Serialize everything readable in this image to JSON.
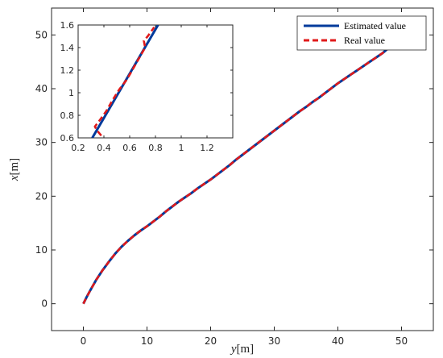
{
  "chart_data": [
    {
      "type": "line",
      "xlabel": {
        "var": "y",
        "unit": "[m]"
      },
      "ylabel": {
        "var": "x",
        "unit": "[m]"
      },
      "xlim": [
        -5,
        55
      ],
      "ylim": [
        -5,
        55
      ],
      "xticks": [
        0,
        10,
        20,
        30,
        40,
        50
      ],
      "yticks": [
        0,
        10,
        20,
        30,
        40,
        50
      ],
      "grid": false,
      "legend_position": "top-right",
      "series": [
        {
          "name": "Estimated value",
          "color": "#003a9b",
          "style": "solid",
          "x": [
            0,
            0.5,
            1,
            2,
            3,
            4,
            5,
            6,
            7,
            8,
            9,
            10,
            11,
            12,
            13,
            14,
            15,
            16,
            17,
            18,
            19,
            20,
            21,
            22,
            23,
            24,
            25,
            26,
            27,
            28,
            29,
            30,
            31,
            32,
            33,
            34,
            35,
            36,
            37,
            38,
            39,
            40,
            41,
            42,
            43,
            44,
            45,
            46,
            47,
            48
          ],
          "y": [
            0,
            1.2,
            2.3,
            4.4,
            6.2,
            7.8,
            9.3,
            10.6,
            11.7,
            12.7,
            13.6,
            14.4,
            15.3,
            16.2,
            17.2,
            18.1,
            19.0,
            19.8,
            20.6,
            21.5,
            22.3,
            23.1,
            24.0,
            24.9,
            25.8,
            26.8,
            27.7,
            28.6,
            29.5,
            30.4,
            31.3,
            32.2,
            33.1,
            34.0,
            34.9,
            35.8,
            36.6,
            37.5,
            38.3,
            39.2,
            40.1,
            41.0,
            41.8,
            42.6,
            43.4,
            44.2,
            45.0,
            45.8,
            46.6,
            47.6
          ]
        },
        {
          "name": "Real value",
          "color": "#e0191a",
          "style": "dashed",
          "x": [
            0,
            0.5,
            1,
            2,
            3,
            4,
            5,
            6,
            7,
            8,
            9,
            10,
            11,
            12,
            13,
            14,
            15,
            16,
            17,
            18,
            19,
            20,
            21,
            22,
            23,
            24,
            25,
            26,
            27,
            28,
            29,
            30,
            31,
            32,
            33,
            34,
            35,
            36,
            37,
            38,
            39,
            40,
            41,
            42,
            43,
            44,
            45,
            46,
            47,
            48
          ],
          "y": [
            0,
            1.2,
            2.3,
            4.4,
            6.2,
            7.8,
            9.3,
            10.6,
            11.7,
            12.7,
            13.6,
            14.4,
            15.3,
            16.2,
            17.2,
            18.1,
            19.0,
            19.8,
            20.6,
            21.5,
            22.3,
            23.1,
            24.0,
            24.9,
            25.8,
            26.8,
            27.7,
            28.6,
            29.5,
            30.4,
            31.3,
            32.2,
            33.1,
            34.0,
            34.9,
            35.8,
            36.6,
            37.5,
            38.3,
            39.2,
            40.1,
            41.0,
            41.8,
            42.6,
            43.4,
            44.2,
            45.0,
            45.8,
            46.6,
            47.6
          ]
        }
      ]
    },
    {
      "type": "line",
      "xlim": [
        0.2,
        1.4
      ],
      "ylim": [
        0.6,
        1.6
      ],
      "xticks": [
        0.2,
        0.4,
        0.6,
        0.8,
        1,
        1.2
      ],
      "yticks": [
        0.6,
        0.8,
        1,
        1.2,
        1.4,
        1.6
      ],
      "grid": false,
      "series": [
        {
          "name": "Estimated value",
          "color": "#003a9b",
          "style": "solid",
          "x": [
            0.31,
            0.82
          ],
          "y": [
            0.6,
            1.6
          ]
        },
        {
          "name": "Real value",
          "color": "#e0191a",
          "style": "dashed",
          "x": [
            0.38,
            0.35,
            0.33,
            0.37,
            0.42,
            0.47,
            0.52,
            0.58,
            0.63,
            0.68,
            0.72,
            0.71,
            0.74,
            0.79
          ],
          "y": [
            0.62,
            0.66,
            0.7,
            0.76,
            0.84,
            0.94,
            1.03,
            1.12,
            1.22,
            1.32,
            1.4,
            1.46,
            1.5,
            1.58
          ]
        }
      ]
    }
  ]
}
